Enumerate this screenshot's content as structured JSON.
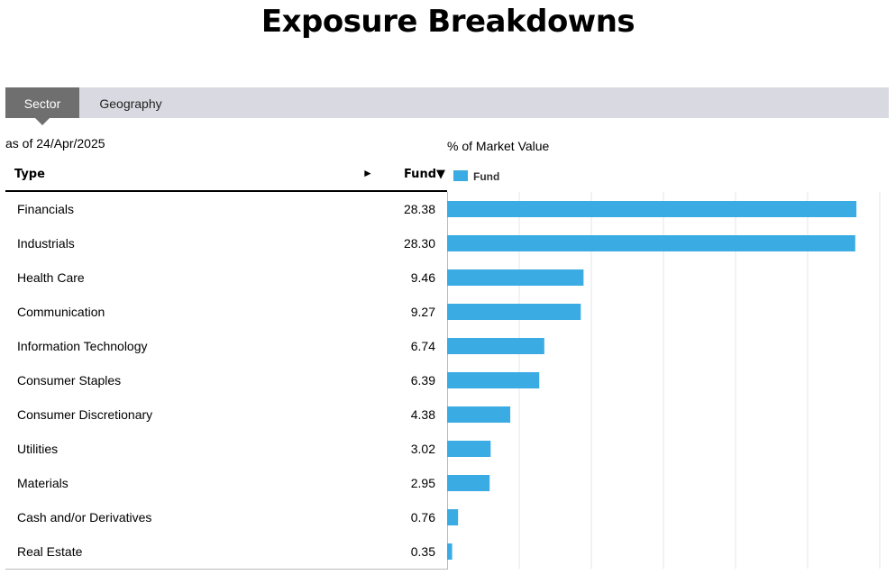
{
  "page": {
    "title": "Exposure Breakdowns"
  },
  "tabs": [
    {
      "label": "Sector",
      "active": true
    },
    {
      "label": "Geography",
      "active": false
    }
  ],
  "as_of": "as of 24/Apr/2025",
  "table": {
    "col_type": "Type",
    "col_arrow": "►",
    "col_fund": "Fund▼",
    "rows": [
      {
        "type": "Financials",
        "fund": "28.38"
      },
      {
        "type": "Industrials",
        "fund": "28.30"
      },
      {
        "type": "Health Care",
        "fund": "9.46"
      },
      {
        "type": "Communication",
        "fund": "9.27"
      },
      {
        "type": "Information Technology",
        "fund": "6.74"
      },
      {
        "type": "Consumer Staples",
        "fund": "6.39"
      },
      {
        "type": "Consumer Discretionary",
        "fund": "4.38"
      },
      {
        "type": "Utilities",
        "fund": "3.02"
      },
      {
        "type": "Materials",
        "fund": "2.95"
      },
      {
        "type": "Cash and/or Derivatives",
        "fund": "0.76"
      },
      {
        "type": "Real Estate",
        "fund": "0.35"
      }
    ]
  },
  "chart_data": {
    "type": "bar",
    "orientation": "horizontal",
    "title": "% of Market Value",
    "categories": [
      "Financials",
      "Industrials",
      "Health Care",
      "Communication",
      "Information Technology",
      "Consumer Staples",
      "Consumer Discretionary",
      "Utilities",
      "Materials",
      "Cash and/or Derivatives",
      "Real Estate"
    ],
    "series": [
      {
        "name": "Fund",
        "values": [
          28.38,
          28.3,
          9.46,
          9.27,
          6.74,
          6.39,
          4.38,
          3.02,
          2.95,
          0.76,
          0.35
        ]
      }
    ],
    "xlim": [
      0,
      30
    ],
    "grid": true,
    "legend": "top-left",
    "bar_color": "#3aabe3",
    "grid_color": "#e4e4e4"
  }
}
